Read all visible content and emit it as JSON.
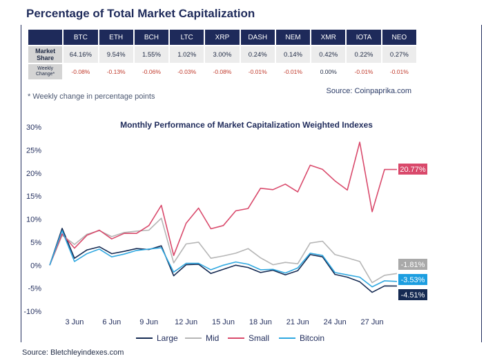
{
  "title": "Percentage of Total Market Capitalization",
  "table": {
    "columns": [
      "BTC",
      "ETH",
      "BCH",
      "LTC",
      "XRP",
      "DASH",
      "NEM",
      "XMR",
      "IOTA",
      "NEO"
    ],
    "rows": [
      {
        "label_1": "Market",
        "label_2": "Share",
        "values": [
          "64.16%",
          "9.54%",
          "1.55%",
          "1.02%",
          "3.00%",
          "0.24%",
          "0.14%",
          "0.42%",
          "0.22%",
          "0.27%"
        ]
      },
      {
        "label_1": "Weekly",
        "label_2": "Change*",
        "values": [
          "-0.08%",
          "-0.13%",
          "-0.06%",
          "-0.03%",
          "-0.08%",
          "-0.01%",
          "-0.01%",
          "0.00%",
          "-0.01%",
          "-0.01%"
        ]
      }
    ]
  },
  "source_top": "Source: Coinpaprika.com",
  "footnote": "* Weekly change in percentage points",
  "source_bottom": "Source: Bletchleyindexes.com",
  "colors": {
    "navy": "#1e2a5a",
    "large": "#152a52",
    "mid": "#b5b5b5",
    "small": "#d9496b",
    "bitcoin": "#2ea7e0",
    "end_large": "#152a52",
    "end_mid": "#a9a9a9",
    "end_small": "#d9496b",
    "end_bitcoin": "#1c9ee0"
  },
  "chart_data": {
    "type": "line",
    "title": "Monthly Performance of Market Capitalization Weighted Indexes",
    "xlabel": "",
    "ylabel": "",
    "ylim": [
      -10,
      30
    ],
    "yticks": [
      -10,
      -5,
      0,
      5,
      10,
      15,
      20,
      25,
      30
    ],
    "ytick_labels": [
      "-10%",
      "-5%",
      "0%",
      "5%",
      "10%",
      "15%",
      "20%",
      "25%",
      "30%"
    ],
    "x": [
      1,
      2,
      3,
      4,
      5,
      6,
      7,
      8,
      9,
      10,
      11,
      12,
      13,
      14,
      15,
      16,
      17,
      18,
      19,
      20,
      21,
      22,
      23,
      24,
      25,
      26,
      27,
      28,
      29
    ],
    "xticks": [
      3,
      6,
      9,
      12,
      15,
      18,
      21,
      24,
      27
    ],
    "xtick_labels": [
      "3 Jun",
      "6 Jun",
      "9 Jun",
      "12 Jun",
      "15 Jun",
      "18 Jun",
      "21 Jun",
      "24 Jun",
      "27 Jun"
    ],
    "grid": false,
    "legend_position": "bottom",
    "series": [
      {
        "name": "Large",
        "color_key": "large",
        "values": [
          0,
          8,
          1.5,
          3.3,
          4,
          2.5,
          3,
          3.6,
          3.4,
          4.2,
          -2.3,
          0.1,
          0.2,
          -1.8,
          -0.9,
          0,
          -0.5,
          -1.6,
          -1.1,
          -2.1,
          -1.2,
          2.3,
          1.8,
          -2,
          -2.6,
          -3.6,
          -5.9,
          -4.5,
          -4.51
        ],
        "end_label": "-4.51%"
      },
      {
        "name": "Mid",
        "color_key": "mid",
        "values": [
          0,
          6.5,
          4.5,
          6.7,
          7.5,
          6.2,
          7.1,
          7.4,
          7.6,
          10.2,
          0.5,
          4.6,
          5,
          1.5,
          2,
          2.6,
          3.6,
          1.6,
          0.1,
          0.6,
          0.3,
          4.8,
          5.2,
          2.3,
          1.6,
          0.8,
          -3.8,
          -2.2,
          -1.81
        ],
        "end_label": "-1.81%"
      },
      {
        "name": "Small",
        "color_key": "small",
        "values": [
          0,
          6.8,
          3.7,
          6.5,
          7.6,
          5.7,
          6.9,
          6.9,
          8.6,
          13,
          2.1,
          9.1,
          12.4,
          7.9,
          8.6,
          11.8,
          12.3,
          16.7,
          16.4,
          17.6,
          15.9,
          21.7,
          20.8,
          18.3,
          16.3,
          26.7,
          11.6,
          20.77,
          20.77
        ],
        "end_label": "20.77%"
      },
      {
        "name": "Bitcoin",
        "color_key": "bitcoin",
        "values": [
          0,
          7.5,
          0.8,
          2.5,
          3.5,
          1.8,
          2.4,
          3.2,
          3.5,
          3.8,
          -1.5,
          0.4,
          0.4,
          -1,
          0,
          0.7,
          0.2,
          -1,
          -0.9,
          -1.7,
          -0.6,
          2.6,
          2.1,
          -1.6,
          -2.1,
          -2.6,
          -4.7,
          -3.4,
          -3.53
        ],
        "end_label": "-3.53%"
      }
    ]
  }
}
